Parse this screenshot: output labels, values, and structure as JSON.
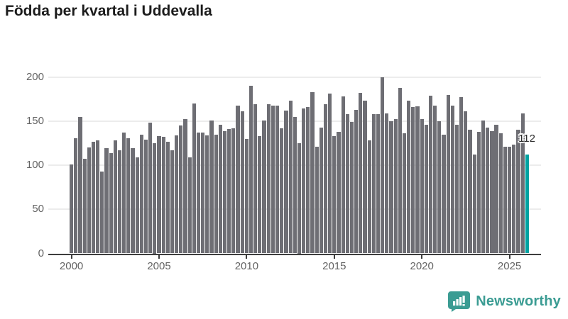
{
  "chart_data": {
    "type": "bar",
    "title": "Födda per kvartal i Uddevalla",
    "frequency": "quarterly",
    "start_period": "2000-Q1",
    "end_period": "2026-Q1",
    "ylim": [
      0,
      200
    ],
    "y_ticks": [
      0,
      50,
      100,
      150,
      200
    ],
    "x_tick_labels": [
      "2000",
      "2005",
      "2010",
      "2015",
      "2020",
      "2025"
    ],
    "grid": "horizontal",
    "bar_color": "#6e6e74",
    "values": [
      101,
      131,
      155,
      107,
      120,
      127,
      128,
      93,
      119,
      114,
      128,
      117,
      137,
      131,
      119,
      109,
      135,
      129,
      148,
      125,
      133,
      132,
      127,
      117,
      134,
      145,
      152,
      109,
      170,
      137,
      137,
      134,
      151,
      135,
      146,
      139,
      141,
      142,
      168,
      161,
      130,
      190,
      169,
      133,
      151,
      169,
      168,
      168,
      142,
      162,
      173,
      155,
      125,
      164,
      166,
      183,
      121,
      143,
      169,
      181,
      133,
      138,
      178,
      158,
      149,
      163,
      182,
      173,
      128,
      158,
      158,
      200,
      159,
      150,
      152,
      188,
      136,
      173,
      166,
      167,
      152,
      146,
      179,
      168,
      150,
      135,
      180,
      168,
      146,
      177,
      161,
      140,
      112,
      138,
      151,
      143,
      139,
      146,
      136,
      121,
      121,
      123,
      140,
      159,
      112
    ],
    "highlight": {
      "index": 104,
      "value": 112,
      "label": "112",
      "color": "#00a2a1"
    }
  },
  "branding": {
    "logo_text": "Newsworthy",
    "logo_color": "#3b9c93"
  }
}
